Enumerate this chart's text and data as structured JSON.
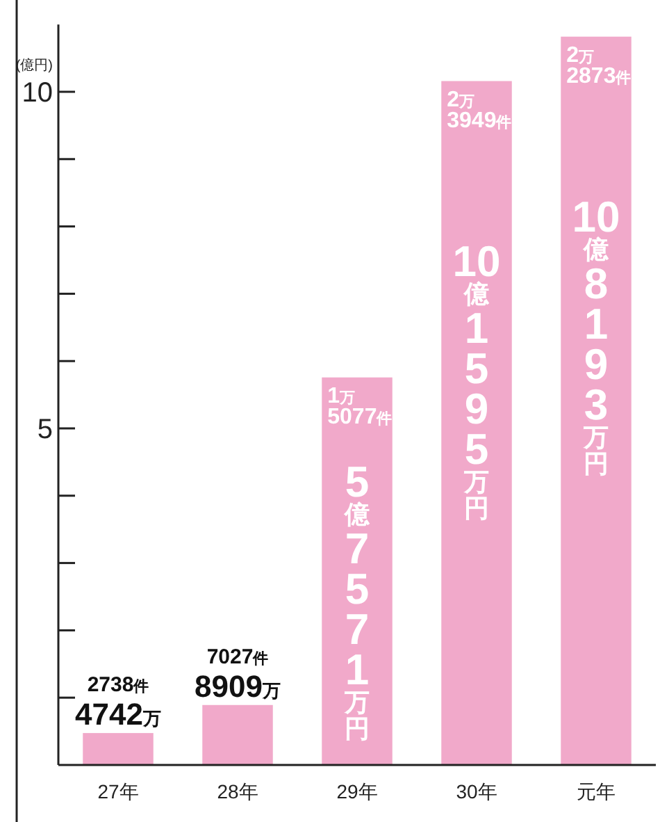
{
  "chart_data": {
    "type": "bar",
    "ylabel": "(億円)",
    "categories": [
      "27年",
      "28年",
      "29年",
      "30年",
      "元年"
    ],
    "values": [
      0.4742,
      0.8909,
      5.7571,
      10.1595,
      10.8193
    ],
    "color": "#f1a9ca",
    "annotations": [
      {
        "text": "2738件",
        "x": "27年",
        "y": 0.4742
      },
      "4742万",
      {
        "text": "7027件",
        "x": "28年",
        "y": 0.8909
      },
      "8909万",
      {
        "text": "1万5077件",
        "x": "29年",
        "y": 5.7571
      },
      "5億7571万円",
      {
        "text": "2万3949件",
        "x": "30年",
        "y": 10.1595
      },
      "10億1595万円",
      {
        "text": "2万2873件",
        "x": "元年",
        "y": 10.8193
      },
      "10億8193万円"
    ],
    "ylim": [
      0,
      11
    ],
    "yticks": [
      {
        "value": 1,
        "label": null
      },
      {
        "value": 2,
        "label": null
      },
      {
        "value": 3,
        "label": null
      },
      {
        "value": 4,
        "label": null
      },
      5,
      {
        "value": 6,
        "label": null
      },
      {
        "value": 7,
        "label": null
      },
      {
        "value": 8,
        "label": null
      },
      {
        "value": 9,
        "label": null
      },
      10
    ]
  }
}
